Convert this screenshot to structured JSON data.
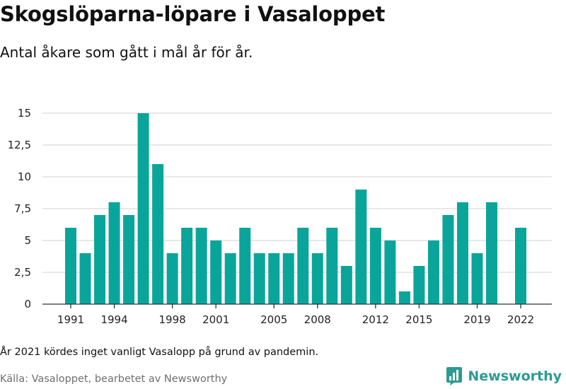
{
  "header": {
    "title": "Skogslöparna-löpare i Vasaloppet",
    "subtitle": "Antal åkare som gått i mål år för år."
  },
  "footer": {
    "note": "År 2021 kördes inget vanligt Vasalopp på grund av pandemin.",
    "source": "Källa: Vasaloppet, bearbetet av Newsworthy",
    "brand": "Newsworthy"
  },
  "colors": {
    "bar": "#0aa59a",
    "grid": "#d9d9d9",
    "axis": "#333333",
    "brand": "#2e9a94"
  },
  "chart_data": {
    "type": "bar",
    "categories": [
      1991,
      1992,
      1993,
      1994,
      1995,
      1996,
      1997,
      1998,
      1999,
      2000,
      2001,
      2002,
      2003,
      2004,
      2005,
      2006,
      2007,
      2008,
      2009,
      2010,
      2011,
      2012,
      2013,
      2014,
      2015,
      2016,
      2017,
      2018,
      2019,
      2020,
      2021,
      2022
    ],
    "values": [
      6,
      4,
      7,
      8,
      7,
      15,
      11,
      4,
      6,
      6,
      5,
      4,
      6,
      4,
      4,
      4,
      6,
      4,
      6,
      3,
      9,
      6,
      5,
      1,
      3,
      5,
      7,
      8,
      4,
      8,
      null,
      6
    ],
    "x_tick_labels": [
      "1991",
      "1994",
      "1998",
      "2001",
      "2005",
      "2008",
      "2012",
      "2015",
      "2019",
      "2022"
    ],
    "y_ticks": [
      0,
      2.5,
      5,
      7.5,
      10,
      12.5,
      15
    ],
    "y_tick_labels": [
      "0",
      "2,5",
      "5",
      "7,5",
      "10",
      "12,5",
      "15"
    ],
    "ylim": [
      0,
      15
    ],
    "grid": true,
    "legend": "none"
  }
}
